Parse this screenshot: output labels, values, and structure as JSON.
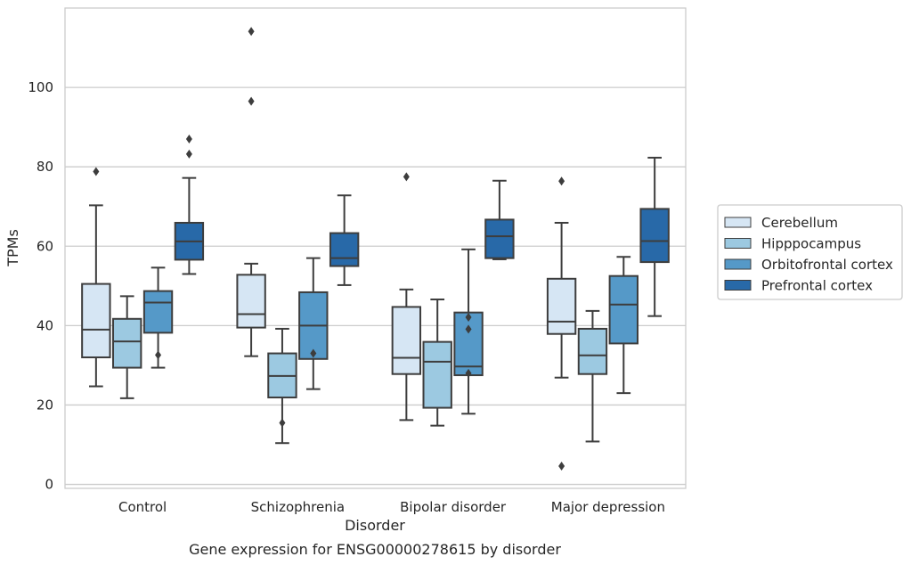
{
  "chart_data": {
    "type": "box",
    "xlabel": "Disorder",
    "ylabel": "TPMs",
    "caption": "Gene expression for ENSG00000278615 by disorder",
    "ylim": [
      -1,
      120
    ],
    "yticks": [
      0,
      20,
      40,
      60,
      80,
      100
    ],
    "grid": "horizontal",
    "legend_position": "right",
    "categories": [
      "Control",
      "Schizophrenia",
      "Bipolar disorder",
      "Major depression"
    ],
    "series": [
      {
        "name": "Cerebellum",
        "color": "#d6e6f4",
        "boxes": [
          {
            "whislo": 24.7,
            "q1": 32.0,
            "med": 39.0,
            "q3": 50.5,
            "whishi": 70.3,
            "fliers": [
              78.8
            ]
          },
          {
            "whislo": 32.3,
            "q1": 39.5,
            "med": 42.9,
            "q3": 52.8,
            "whishi": 55.6,
            "fliers": [
              114.1,
              96.5
            ]
          },
          {
            "whislo": 16.2,
            "q1": 27.8,
            "med": 31.9,
            "q3": 44.7,
            "whishi": 49.1,
            "fliers": [
              77.5
            ]
          },
          {
            "whislo": 26.9,
            "q1": 37.9,
            "med": 41.0,
            "q3": 51.8,
            "whishi": 65.9,
            "fliers": [
              76.4,
              4.6
            ]
          }
        ]
      },
      {
        "name": "Hipppocampus",
        "color": "#9cc9e1",
        "boxes": [
          {
            "whislo": 21.7,
            "q1": 29.4,
            "med": 36.0,
            "q3": 41.7,
            "whishi": 47.4,
            "fliers": []
          },
          {
            "whislo": 10.4,
            "q1": 21.9,
            "med": 27.3,
            "q3": 33.0,
            "whishi": 39.2,
            "fliers": [
              15.5
            ]
          },
          {
            "whislo": 14.8,
            "q1": 19.3,
            "med": 30.9,
            "q3": 35.9,
            "whishi": 46.6,
            "fliers": []
          },
          {
            "whislo": 10.8,
            "q1": 27.8,
            "med": 32.5,
            "q3": 39.2,
            "whishi": 43.7,
            "fliers": []
          }
        ]
      },
      {
        "name": "Orbitofrontal cortex",
        "color": "#5599c8",
        "boxes": [
          {
            "whislo": 29.4,
            "q1": 38.2,
            "med": 45.8,
            "q3": 48.7,
            "whishi": 54.6,
            "fliers": [
              32.6
            ]
          },
          {
            "whislo": 24.0,
            "q1": 31.6,
            "med": 40.0,
            "q3": 48.4,
            "whishi": 57.0,
            "fliers": [
              33.0
            ]
          },
          {
            "whislo": 17.8,
            "q1": 27.5,
            "med": 29.7,
            "q3": 43.3,
            "whishi": 59.2,
            "fliers": [
              42.1,
              39.1,
              28.0
            ]
          },
          {
            "whislo": 23.0,
            "q1": 35.5,
            "med": 45.3,
            "q3": 52.5,
            "whishi": 57.3,
            "fliers": []
          }
        ]
      },
      {
        "name": "Prefrontal cortex",
        "color": "#2869a8",
        "boxes": [
          {
            "whislo": 53.0,
            "q1": 56.6,
            "med": 61.2,
            "q3": 65.9,
            "whishi": 77.2,
            "fliers": [
              87.0,
              83.2
            ]
          },
          {
            "whislo": 50.2,
            "q1": 55.0,
            "med": 57.0,
            "q3": 63.3,
            "whishi": 72.8,
            "fliers": []
          },
          {
            "whislo": 56.7,
            "q1": 57.0,
            "med": 62.5,
            "q3": 66.7,
            "whishi": 76.5,
            "fliers": []
          },
          {
            "whislo": 42.4,
            "q1": 56.0,
            "med": 61.3,
            "q3": 69.4,
            "whishi": 82.3,
            "fliers": []
          }
        ]
      }
    ]
  }
}
